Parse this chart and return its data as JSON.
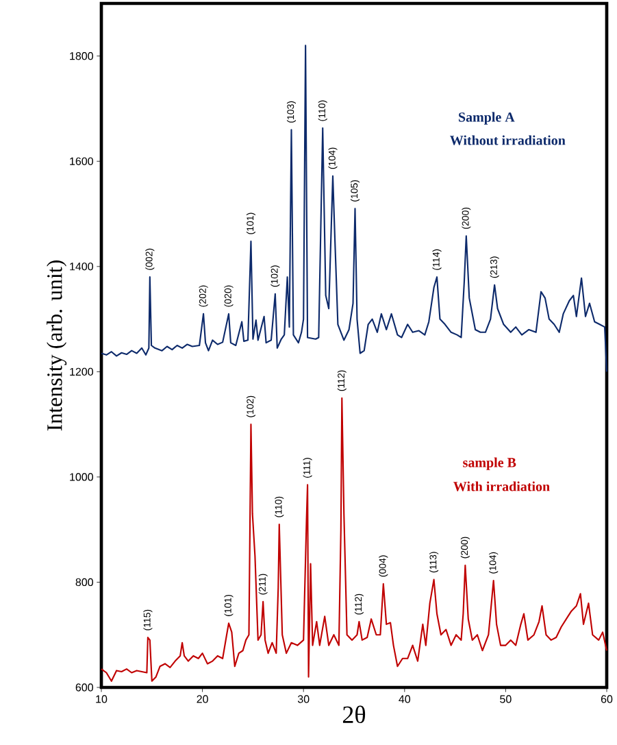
{
  "chart_data": {
    "type": "line",
    "xlabel": "2θ",
    "ylabel": "Intensity (arb. unit)",
    "xlim": [
      10,
      60
    ],
    "ylim": [
      600,
      1900
    ],
    "xticks": [
      10,
      20,
      30,
      40,
      50,
      60
    ],
    "yticks": [
      600,
      800,
      1000,
      1200,
      1400,
      1600,
      1800
    ],
    "series": [
      {
        "name": "Sample A",
        "color": "#0d2a6b",
        "x": [
          10,
          10.5,
          11,
          11.5,
          12,
          12.5,
          13,
          13.5,
          14,
          14.4,
          14.7,
          14.8,
          14.95,
          15.3,
          16,
          16.5,
          17,
          17.5,
          18,
          18.5,
          19,
          19.7,
          20.1,
          20.3,
          20.6,
          21,
          21.5,
          22,
          22.6,
          22.8,
          23.3,
          23.9,
          24.1,
          24.5,
          24.8,
          25.0,
          25.3,
          25.5,
          26.1,
          26.3,
          26.8,
          27.2,
          27.4,
          27.8,
          28.1,
          28.4,
          28.6,
          28.8,
          29.0,
          29.5,
          29.8,
          30.0,
          30.2,
          30.4,
          31.2,
          31.5,
          31.9,
          32.2,
          32.5,
          32.9,
          33.1,
          33.4,
          34,
          34.5,
          34.9,
          35.1,
          35.3,
          35.6,
          36,
          36.4,
          36.8,
          37.3,
          37.7,
          38.2,
          38.7,
          39.3,
          39.7,
          40.3,
          40.8,
          41.4,
          42,
          42.4,
          42.9,
          43.2,
          43.5,
          44,
          44.6,
          45.2,
          45.6,
          45.9,
          46.1,
          46.4,
          46.6,
          47,
          47.5,
          48,
          48.5,
          48.9,
          49.2,
          49.8,
          50.5,
          51,
          51.6,
          52.3,
          53.0,
          53.5,
          53.9,
          54.3,
          54.8,
          55.3,
          55.7,
          56.3,
          56.7,
          57.0,
          57.5,
          57.9,
          58.3,
          58.8,
          59.3,
          59.8,
          60
        ],
        "values": [
          1235,
          1232,
          1238,
          1230,
          1236,
          1233,
          1240,
          1235,
          1245,
          1232,
          1245,
          1380,
          1250,
          1245,
          1240,
          1248,
          1242,
          1250,
          1245,
          1252,
          1248,
          1250,
          1310,
          1255,
          1240,
          1260,
          1252,
          1256,
          1310,
          1255,
          1250,
          1295,
          1258,
          1260,
          1448,
          1262,
          1298,
          1260,
          1305,
          1255,
          1260,
          1348,
          1245,
          1262,
          1270,
          1380,
          1285,
          1660,
          1270,
          1255,
          1275,
          1300,
          1820,
          1265,
          1262,
          1265,
          1663,
          1345,
          1320,
          1572,
          1455,
          1290,
          1260,
          1280,
          1330,
          1510,
          1300,
          1235,
          1240,
          1290,
          1300,
          1275,
          1310,
          1280,
          1310,
          1270,
          1265,
          1290,
          1275,
          1278,
          1270,
          1295,
          1360,
          1380,
          1300,
          1290,
          1275,
          1270,
          1265,
          1370,
          1458,
          1340,
          1320,
          1280,
          1275,
          1275,
          1300,
          1365,
          1320,
          1290,
          1275,
          1285,
          1270,
          1280,
          1275,
          1352,
          1340,
          1300,
          1290,
          1275,
          1310,
          1335,
          1345,
          1305,
          1378,
          1305,
          1330,
          1295,
          1290,
          1285,
          1200
        ]
      },
      {
        "name": "sample B",
        "color": "#c00000",
        "x": [
          10,
          10.5,
          11,
          11.5,
          12,
          12.5,
          13,
          13.5,
          14,
          14.5,
          14.6,
          14.8,
          15,
          15.4,
          15.8,
          16.3,
          16.8,
          17.3,
          17.8,
          18,
          18.2,
          18.6,
          19.1,
          19.6,
          20,
          20.5,
          21,
          21.5,
          22,
          22.4,
          22.6,
          22.9,
          23.2,
          23.6,
          24,
          24.3,
          24.6,
          24.8,
          24.95,
          25.2,
          25.5,
          25.8,
          26.0,
          26.2,
          26.5,
          26.9,
          27.3,
          27.5,
          27.6,
          27.9,
          28.3,
          28.8,
          29.4,
          30.0,
          30.3,
          30.4,
          30.5,
          30.7,
          30.9,
          31.3,
          31.6,
          32.1,
          32.5,
          33.0,
          33.5,
          33.7,
          33.8,
          34.0,
          34.3,
          34.8,
          35.3,
          35.5,
          35.8,
          36.3,
          36.7,
          37.2,
          37.6,
          37.9,
          38.2,
          38.6,
          38.9,
          39.3,
          39.8,
          40.3,
          40.8,
          41.3,
          41.8,
          42.1,
          42.5,
          42.9,
          43.2,
          43.6,
          44.1,
          44.6,
          45.1,
          45.6,
          45.8,
          46.0,
          46.3,
          46.7,
          47.2,
          47.7,
          48.3,
          48.8,
          49.1,
          49.5,
          50,
          50.5,
          51,
          51.5,
          51.8,
          52.2,
          52.8,
          53.3,
          53.6,
          54,
          54.5,
          55,
          55.5,
          56,
          56.5,
          57,
          57.4,
          57.7,
          58.2,
          58.6,
          59.2,
          59.6,
          60
        ],
        "values": [
          635,
          628,
          612,
          632,
          630,
          635,
          628,
          632,
          630,
          628,
          695,
          690,
          612,
          620,
          640,
          645,
          638,
          650,
          660,
          685,
          660,
          650,
          660,
          655,
          665,
          645,
          650,
          660,
          655,
          700,
          722,
          705,
          640,
          665,
          670,
          690,
          700,
          1100,
          930,
          850,
          690,
          700,
          763,
          690,
          665,
          685,
          665,
          790,
          910,
          700,
          665,
          685,
          680,
          690,
          920,
          985,
          620,
          835,
          680,
          725,
          680,
          735,
          680,
          700,
          680,
          900,
          1150,
          930,
          700,
          690,
          700,
          725,
          690,
          695,
          730,
          700,
          700,
          797,
          720,
          723,
          680,
          640,
          655,
          655,
          680,
          650,
          720,
          680,
          760,
          805,
          740,
          700,
          710,
          680,
          700,
          690,
          740,
          832,
          730,
          690,
          700,
          670,
          700,
          803,
          720,
          680,
          680,
          690,
          680,
          720,
          740,
          690,
          700,
          725,
          755,
          700,
          690,
          695,
          715,
          730,
          745,
          755,
          778,
          720,
          760,
          700,
          690,
          705,
          670
        ]
      }
    ],
    "annotations": [
      "Without irradiation",
      "With irradiation",
      {
        "text": "(002)",
        "x": 14.8,
        "y": 1380
      },
      {
        "text": "(202)",
        "x": 20.1,
        "y": 1310
      },
      {
        "text": "(020)",
        "x": 22.6,
        "y": 1310
      },
      {
        "text": "(101)",
        "x": 24.8,
        "y": 1448
      },
      {
        "text": "(102)",
        "x": 27.2,
        "y": 1348
      },
      {
        "text": "(103)",
        "x": 28.8,
        "y": 1660
      },
      {
        "text": "(110)",
        "x": 31.9,
        "y": 1663
      },
      {
        "text": "(104)",
        "x": 32.9,
        "y": 1572
      },
      {
        "text": "(105)",
        "x": 35.1,
        "y": 1510
      },
      {
        "text": "(114)",
        "x": 43.2,
        "y": 1380
      },
      {
        "text": "(200)",
        "x": 46.1,
        "y": 1458
      },
      {
        "text": "(213)",
        "x": 48.9,
        "y": 1365
      },
      {
        "text": "(115)",
        "x": 14.6,
        "y": 695
      },
      {
        "text": "(101)",
        "x": 22.6,
        "y": 722
      },
      {
        "text": "(102)",
        "x": 24.8,
        "y": 1100
      },
      {
        "text": "(211)",
        "x": 26.0,
        "y": 763
      },
      {
        "text": "(110)",
        "x": 27.6,
        "y": 910
      },
      {
        "text": "(111)",
        "x": 30.4,
        "y": 985
      },
      {
        "text": "(112)",
        "x": 33.8,
        "y": 1150
      },
      {
        "text": "(112)",
        "x": 35.5,
        "y": 725
      },
      {
        "text": "(004)",
        "x": 37.9,
        "y": 797
      },
      {
        "text": "(113)",
        "x": 42.9,
        "y": 805
      },
      {
        "text": "(200)",
        "x": 46.0,
        "y": 832
      },
      {
        "text": "(104)",
        "x": 48.8,
        "y": 803
      }
    ]
  }
}
